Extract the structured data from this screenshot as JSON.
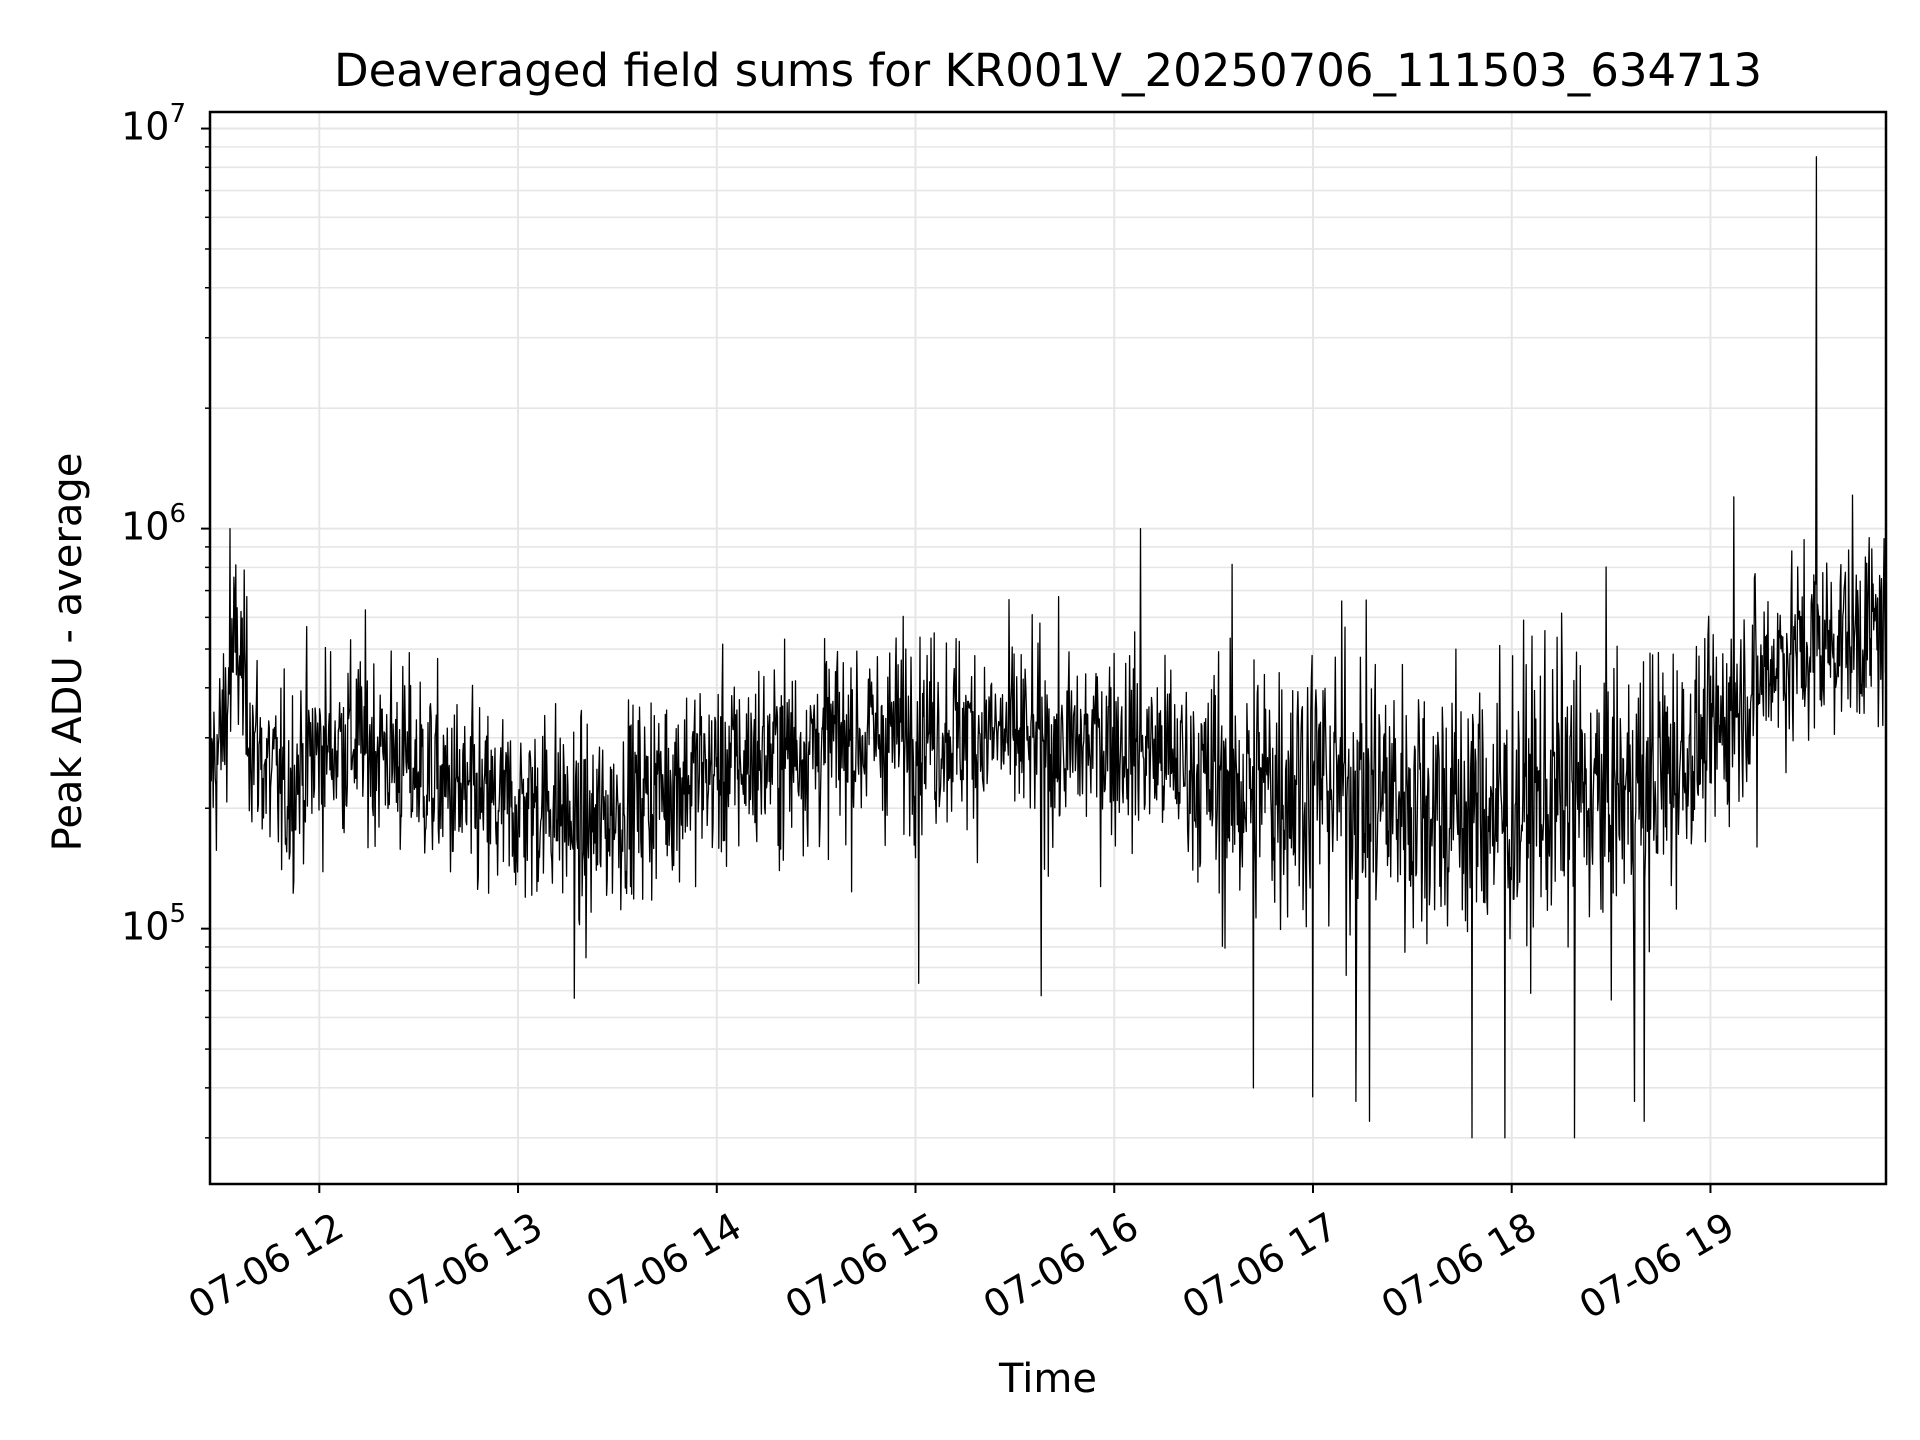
{
  "chart_data": {
    "type": "line",
    "title": "Deaveraged field sums for KR001V_20250706_111503_634713",
    "xlabel": "Time",
    "ylabel": "Peak ADU - average",
    "yscale": "log",
    "ylim": [
      23000,
      11000000
    ],
    "xlim": [
      "2025-07-06 11:27",
      "2025-07-06 19:53"
    ],
    "grid": true,
    "line_color": "#000000",
    "grid_color": "#e6e6e6",
    "y_ticks": [
      {
        "base": "10",
        "exp": "5",
        "value": 100000
      },
      {
        "base": "10",
        "exp": "6",
        "value": 1000000
      },
      {
        "base": "10",
        "exp": "7",
        "value": 10000000
      }
    ],
    "x_ticks": [
      {
        "label": "07-06 12",
        "time": "2025-07-06 12:00"
      },
      {
        "label": "07-06 13",
        "time": "2025-07-06 13:00"
      },
      {
        "label": "07-06 14",
        "time": "2025-07-06 14:00"
      },
      {
        "label": "07-06 15",
        "time": "2025-07-06 15:00"
      },
      {
        "label": "07-06 16",
        "time": "2025-07-06 16:00"
      },
      {
        "label": "07-06 17",
        "time": "2025-07-06 17:00"
      },
      {
        "label": "07-06 18",
        "time": "2025-07-06 18:00"
      },
      {
        "label": "07-06 19",
        "time": "2025-07-06 19:00"
      }
    ],
    "series": [
      {
        "x": [
          "2025-07-06 11:27",
          "2025-07-06 11:30",
          "2025-07-06 11:35",
          "2025-07-06 11:40",
          "2025-07-06 11:45",
          "2025-07-06 11:50",
          "2025-07-06 11:55",
          "2025-07-06 12:00",
          "2025-07-06 12:10",
          "2025-07-06 12:20",
          "2025-07-06 12:30",
          "2025-07-06 12:40",
          "2025-07-06 12:50",
          "2025-07-06 13:00",
          "2025-07-06 13:10",
          "2025-07-06 13:20",
          "2025-07-06 13:30",
          "2025-07-06 13:40",
          "2025-07-06 13:50",
          "2025-07-06 14:00",
          "2025-07-06 14:15",
          "2025-07-06 14:30",
          "2025-07-06 14:45",
          "2025-07-06 15:00",
          "2025-07-06 15:15",
          "2025-07-06 15:30",
          "2025-07-06 15:45",
          "2025-07-06 16:00",
          "2025-07-06 16:15",
          "2025-07-06 16:30",
          "2025-07-06 16:45",
          "2025-07-06 17:00",
          "2025-07-06 17:15",
          "2025-07-06 17:30",
          "2025-07-06 17:45",
          "2025-07-06 18:00",
          "2025-07-06 18:15",
          "2025-07-06 18:30",
          "2025-07-06 18:45",
          "2025-07-06 19:00",
          "2025-07-06 19:10",
          "2025-07-06 19:20",
          "2025-07-06 19:30",
          "2025-07-06 19:40",
          "2025-07-06 19:53"
        ],
        "y": [
          250000,
          280000,
          520000,
          300000,
          240000,
          220000,
          260000,
          280000,
          300000,
          280000,
          250000,
          220000,
          200000,
          200000,
          210000,
          170000,
          200000,
          220000,
          240000,
          250000,
          270000,
          290000,
          300000,
          320000,
          310000,
          300000,
          280000,
          300000,
          270000,
          230000,
          230000,
          240000,
          220000,
          210000,
          200000,
          200000,
          220000,
          210000,
          240000,
          300000,
          380000,
          480000,
          500000,
          550000,
          560000
        ]
      }
    ],
    "spikes": [
      {
        "time": "2025-07-06 19:32",
        "value": 8500000
      },
      {
        "time": "2025-07-06 11:33",
        "value": 1000000
      },
      {
        "time": "2025-07-06 16:08",
        "value": 1000000
      },
      {
        "time": "2025-07-06 19:07",
        "value": 1200000
      },
      {
        "time": "2025-07-06 13:17",
        "value": 67000
      },
      {
        "time": "2025-07-06 15:01",
        "value": 73000
      },
      {
        "time": "2025-07-06 15:38",
        "value": 68000
      },
      {
        "time": "2025-07-06 16:42",
        "value": 40000
      },
      {
        "time": "2025-07-06 17:00",
        "value": 38000
      },
      {
        "time": "2025-07-06 17:13",
        "value": 37000
      },
      {
        "time": "2025-07-06 17:17",
        "value": 33000
      },
      {
        "time": "2025-07-06 17:48",
        "value": 30000
      },
      {
        "time": "2025-07-06 17:58",
        "value": 30000
      },
      {
        "time": "2025-07-06 18:19",
        "value": 30000
      },
      {
        "time": "2025-07-06 18:37",
        "value": 37000
      },
      {
        "time": "2025-07-06 18:40",
        "value": 33000
      },
      {
        "time": "2025-07-06 19:14",
        "value": 160000
      }
    ]
  }
}
